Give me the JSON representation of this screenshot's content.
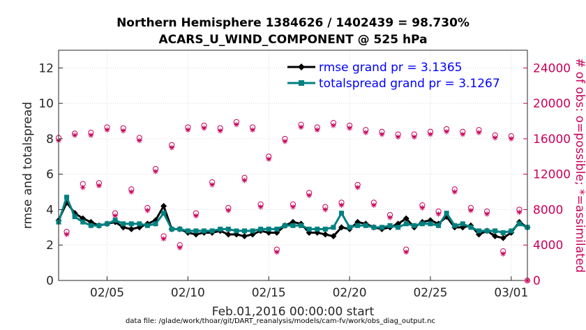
{
  "chart_data": {
    "type": "line",
    "title_line1": "Northern Hemisphere 1384626 / 1402439 = 98.730%",
    "title_line2": "ACARS_U_WIND_COMPONENT @ 525 hPa",
    "xlabel": "Feb.01,2016 00:00:00 start",
    "ylabel": "rmse and totalspread",
    "y2label": "# of obs: o=possible; *=assimilated",
    "xlim": [
      1,
      30
    ],
    "ylim": [
      0,
      13
    ],
    "y2lim": [
      0,
      26000
    ],
    "x_ticks": [
      4,
      9,
      14,
      19,
      24,
      29
    ],
    "x_tick_labels": [
      "02/05",
      "02/10",
      "02/15",
      "02/20",
      "02/25",
      "03/01"
    ],
    "y_ticks": [
      0,
      2,
      4,
      6,
      8,
      10,
      12
    ],
    "y_tick_labels": [
      "0",
      "2",
      "4",
      "6",
      "8",
      "10",
      "12"
    ],
    "y2_ticks": [
      0,
      4000,
      8000,
      12000,
      16000,
      20000,
      24000
    ],
    "y2_tick_labels": [
      "0",
      "4000",
      "8000",
      "12000",
      "16000",
      "20000",
      "24000"
    ],
    "legend_position": "top-right",
    "footnote": "data file: /glade/work/thoar/git/DART_reanalysis/models/cam-fv/work/obs_diag_output.nc",
    "colors": {
      "rmse": "#000000",
      "spread": "#008080",
      "obs": "#c8005a",
      "legend_text": "#0000ff",
      "grid": "#d9d9d9"
    },
    "series": [
      {
        "name": "rmse",
        "legend": "rmse grand pr = 3.1365",
        "x": [
          1.0,
          1.5,
          2.0,
          2.5,
          3.0,
          3.5,
          4.0,
          4.5,
          5.0,
          5.5,
          6.0,
          6.5,
          7.0,
          7.5,
          8.0,
          8.5,
          9.0,
          9.5,
          10.0,
          10.5,
          11.0,
          11.5,
          12.0,
          12.5,
          13.0,
          13.5,
          14.0,
          14.5,
          15.0,
          15.5,
          16.0,
          16.5,
          17.0,
          17.5,
          18.0,
          18.5,
          19.0,
          19.5,
          20.0,
          20.5,
          21.0,
          21.5,
          22.0,
          22.5,
          23.0,
          23.5,
          24.0,
          24.5,
          25.0,
          25.5,
          26.0,
          26.5,
          27.0,
          27.5,
          28.0,
          28.5,
          29.0,
          29.5,
          30.0
        ],
        "values": [
          3.4,
          4.4,
          3.8,
          3.5,
          3.3,
          3.1,
          3.2,
          3.3,
          3.0,
          2.9,
          3.0,
          3.2,
          3.4,
          4.2,
          2.9,
          2.9,
          2.7,
          2.6,
          2.7,
          2.7,
          2.8,
          2.6,
          2.6,
          2.5,
          2.6,
          2.8,
          2.7,
          2.7,
          3.1,
          3.3,
          3.2,
          2.7,
          2.7,
          2.6,
          2.5,
          3.0,
          2.9,
          3.3,
          3.2,
          3.0,
          2.9,
          3.0,
          3.2,
          3.5,
          3.0,
          3.3,
          3.4,
          3.2,
          3.6,
          3.0,
          3.0,
          3.1,
          2.6,
          2.8,
          2.5,
          2.4,
          2.7,
          3.3,
          3.0
        ]
      },
      {
        "name": "totalspread",
        "legend": "totalspread grand pr = 3.1267",
        "x": [
          1.0,
          1.5,
          2.0,
          2.5,
          3.0,
          3.5,
          4.0,
          4.5,
          5.0,
          5.5,
          6.0,
          6.5,
          7.0,
          7.5,
          8.0,
          8.5,
          9.0,
          9.5,
          10.0,
          10.5,
          11.0,
          11.5,
          12.0,
          12.5,
          13.0,
          13.5,
          14.0,
          14.5,
          15.0,
          15.5,
          16.0,
          16.5,
          17.0,
          17.5,
          18.0,
          18.5,
          19.0,
          19.5,
          20.0,
          20.5,
          21.0,
          21.5,
          22.0,
          22.5,
          23.0,
          23.5,
          24.0,
          24.5,
          25.0,
          25.5,
          26.0,
          26.5,
          27.0,
          27.5,
          28.0,
          28.5,
          29.0,
          29.5,
          30.0
        ],
        "values": [
          3.3,
          4.7,
          3.6,
          3.3,
          3.1,
          3.1,
          3.2,
          3.4,
          3.2,
          3.2,
          3.2,
          3.1,
          3.2,
          3.8,
          2.9,
          2.9,
          2.8,
          2.8,
          2.8,
          2.8,
          2.9,
          2.9,
          2.8,
          2.8,
          2.8,
          2.9,
          2.9,
          2.9,
          3.1,
          3.1,
          3.1,
          2.9,
          2.9,
          2.9,
          3.0,
          3.8,
          3.0,
          3.1,
          3.1,
          3.0,
          3.0,
          3.1,
          3.0,
          3.2,
          3.1,
          3.2,
          3.2,
          3.1,
          3.8,
          3.1,
          3.2,
          3.0,
          2.8,
          2.8,
          2.8,
          2.7,
          2.8,
          3.2,
          3.0
        ]
      },
      {
        "name": "obs_possible",
        "marker": "o",
        "x": [
          1.0,
          1.5,
          2.0,
          2.5,
          3.0,
          3.5,
          4.0,
          4.5,
          5.0,
          5.5,
          6.0,
          6.5,
          7.0,
          7.5,
          8.0,
          8.5,
          9.0,
          9.5,
          10.0,
          10.5,
          11.0,
          11.5,
          12.0,
          12.5,
          13.0,
          13.5,
          14.0,
          14.5,
          15.0,
          15.5,
          16.0,
          16.5,
          17.0,
          17.5,
          18.0,
          18.5,
          19.0,
          19.5,
          20.0,
          20.5,
          21.0,
          21.5,
          22.0,
          22.5,
          23.0,
          23.5,
          24.0,
          24.5,
          25.0,
          25.5,
          26.0,
          26.5,
          27.0,
          27.5,
          28.0,
          28.5,
          29.0,
          29.5,
          30.0
        ],
        "values": [
          16100,
          5500,
          16600,
          10900,
          16700,
          11000,
          17300,
          7600,
          17200,
          10300,
          16100,
          8200,
          12600,
          5000,
          15300,
          4000,
          17300,
          7600,
          17500,
          11100,
          17200,
          8200,
          17900,
          11600,
          17300,
          8600,
          14000,
          3500,
          16000,
          8600,
          17600,
          9900,
          17300,
          8300,
          17800,
          8800,
          17500,
          10800,
          17000,
          8800,
          16800,
          7400,
          16500,
          3500,
          16500,
          8500,
          16800,
          7800,
          17100,
          10300,
          16800,
          8200,
          17000,
          7800,
          16400,
          3300,
          16300,
          8000,
          0
        ]
      },
      {
        "name": "obs_assimilated",
        "marker": "*",
        "x": [
          1.0,
          1.5,
          2.0,
          2.5,
          3.0,
          3.5,
          4.0,
          4.5,
          5.0,
          5.5,
          6.0,
          6.5,
          7.0,
          7.5,
          8.0,
          8.5,
          9.0,
          9.5,
          10.0,
          10.5,
          11.0,
          11.5,
          12.0,
          12.5,
          13.0,
          13.5,
          14.0,
          14.5,
          15.0,
          15.5,
          16.0,
          16.5,
          17.0,
          17.5,
          18.0,
          18.5,
          19.0,
          19.5,
          20.0,
          20.5,
          21.0,
          21.5,
          22.0,
          22.5,
          23.0,
          23.5,
          24.0,
          24.5,
          25.0,
          25.5,
          26.0,
          26.5,
          27.0,
          27.5,
          28.0,
          28.5,
          29.0,
          29.5,
          30.0
        ],
        "values": [
          15800,
          5200,
          16400,
          10500,
          16400,
          10700,
          17000,
          7300,
          16900,
          10000,
          15800,
          7900,
          12300,
          4700,
          15000,
          3700,
          17000,
          7300,
          17200,
          10800,
          16900,
          7900,
          17600,
          11300,
          17000,
          8300,
          13700,
          3200,
          15700,
          8300,
          17300,
          9600,
          17000,
          8000,
          17500,
          8500,
          17200,
          10500,
          16700,
          8500,
          16500,
          7100,
          16200,
          3200,
          16200,
          8200,
          16500,
          7500,
          16800,
          10000,
          16500,
          7900,
          16700,
          7500,
          16100,
          3000,
          16000,
          7700,
          0
        ]
      }
    ]
  }
}
